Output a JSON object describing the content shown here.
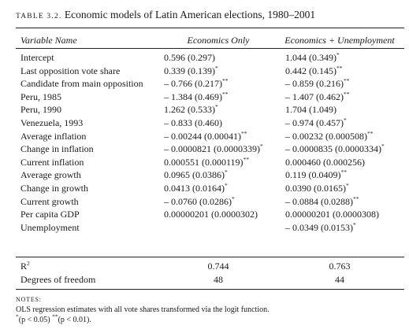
{
  "caption": {
    "label": "Table 3.2.",
    "title": "Economic models of Latin American elections, 1980–2001"
  },
  "header": {
    "variable": "Variable Name",
    "col1": "Economics Only",
    "col2": "Economics + Unemployment"
  },
  "rows": [
    {
      "name": "Intercept",
      "c1": "0.596 (0.297)",
      "c1sig": "",
      "c2": "1.044 (0.349)",
      "c2sig": "*"
    },
    {
      "name": "Last opposition vote share",
      "c1": "0.339 (0.139)",
      "c1sig": "*",
      "c2": "0.442 (0.145)",
      "c2sig": "**"
    },
    {
      "name": "Candidate from main opposition",
      "c1": "– 0.766 (0.217)",
      "c1sig": "**",
      "c2": "– 0.859 (0.216)",
      "c2sig": "**"
    },
    {
      "name": "Peru, 1985",
      "c1": "– 1.384 (0.469)",
      "c1sig": "**",
      "c2": "– 1.407 (0.462)",
      "c2sig": "**"
    },
    {
      "name": "Peru, 1990",
      "c1": "1.262 (0.533)",
      "c1sig": "*",
      "c2": "1.704 (1.049)",
      "c2sig": ""
    },
    {
      "name": "Venezuela, 1993",
      "c1": "– 0.833 (0.460)",
      "c1sig": "",
      "c2": "– 0.974 (0.457)",
      "c2sig": "*"
    },
    {
      "name": "Average inflation",
      "c1": "– 0.00244 (0.00041)",
      "c1sig": "**",
      "c2": "– 0.00232 (0.000508)",
      "c2sig": "**"
    },
    {
      "name": "Change in inflation",
      "c1": "– 0.0000821 (0.0000339)",
      "c1sig": "*",
      "c2": "– 0.0000835 (0.0000334)",
      "c2sig": "*"
    },
    {
      "name": "Current inflation",
      "c1": "0.000551 (0.000119)",
      "c1sig": "**",
      "c2": "0.000460 (0.000256)",
      "c2sig": ""
    },
    {
      "name": "Average growth",
      "c1": "0.0965 (0.0386)",
      "c1sig": "*",
      "c2": "0.119 (0.0409)",
      "c2sig": "**"
    },
    {
      "name": "Change in growth",
      "c1": "0.0413 (0.0164)",
      "c1sig": "*",
      "c2": "0.0390 (0.0165)",
      "c2sig": "*"
    },
    {
      "name": "Current growth",
      "c1": "– 0.0760 (0.0286)",
      "c1sig": "*",
      "c2": "– 0.0884 (0.0288)",
      "c2sig": "**"
    },
    {
      "name": "Per capita GDP",
      "c1": "0.00000201 (0.0000302)",
      "c1sig": "",
      "c2": "0.00000201 (0.0000308)",
      "c2sig": ""
    },
    {
      "name": "Unemployment",
      "c1": "",
      "c1sig": "",
      "c2": "– 0.0349 (0.0153)",
      "c2sig": "*"
    }
  ],
  "footer": {
    "r2_label": "R",
    "r2_sup": "2",
    "r2_c1": "0.744",
    "r2_c2": "0.763",
    "df_label": "Degrees of freedom",
    "df_c1": "48",
    "df_c2": "44"
  },
  "notes": {
    "heading": "NOTES:",
    "line1": "OLS regression estimates with all vote shares transformed via the logit function.",
    "sig1_sup": "*",
    "sig1_text": "(p < 0.05) ",
    "sig2_sup": "**",
    "sig2_text": "(p < 0.01)."
  }
}
